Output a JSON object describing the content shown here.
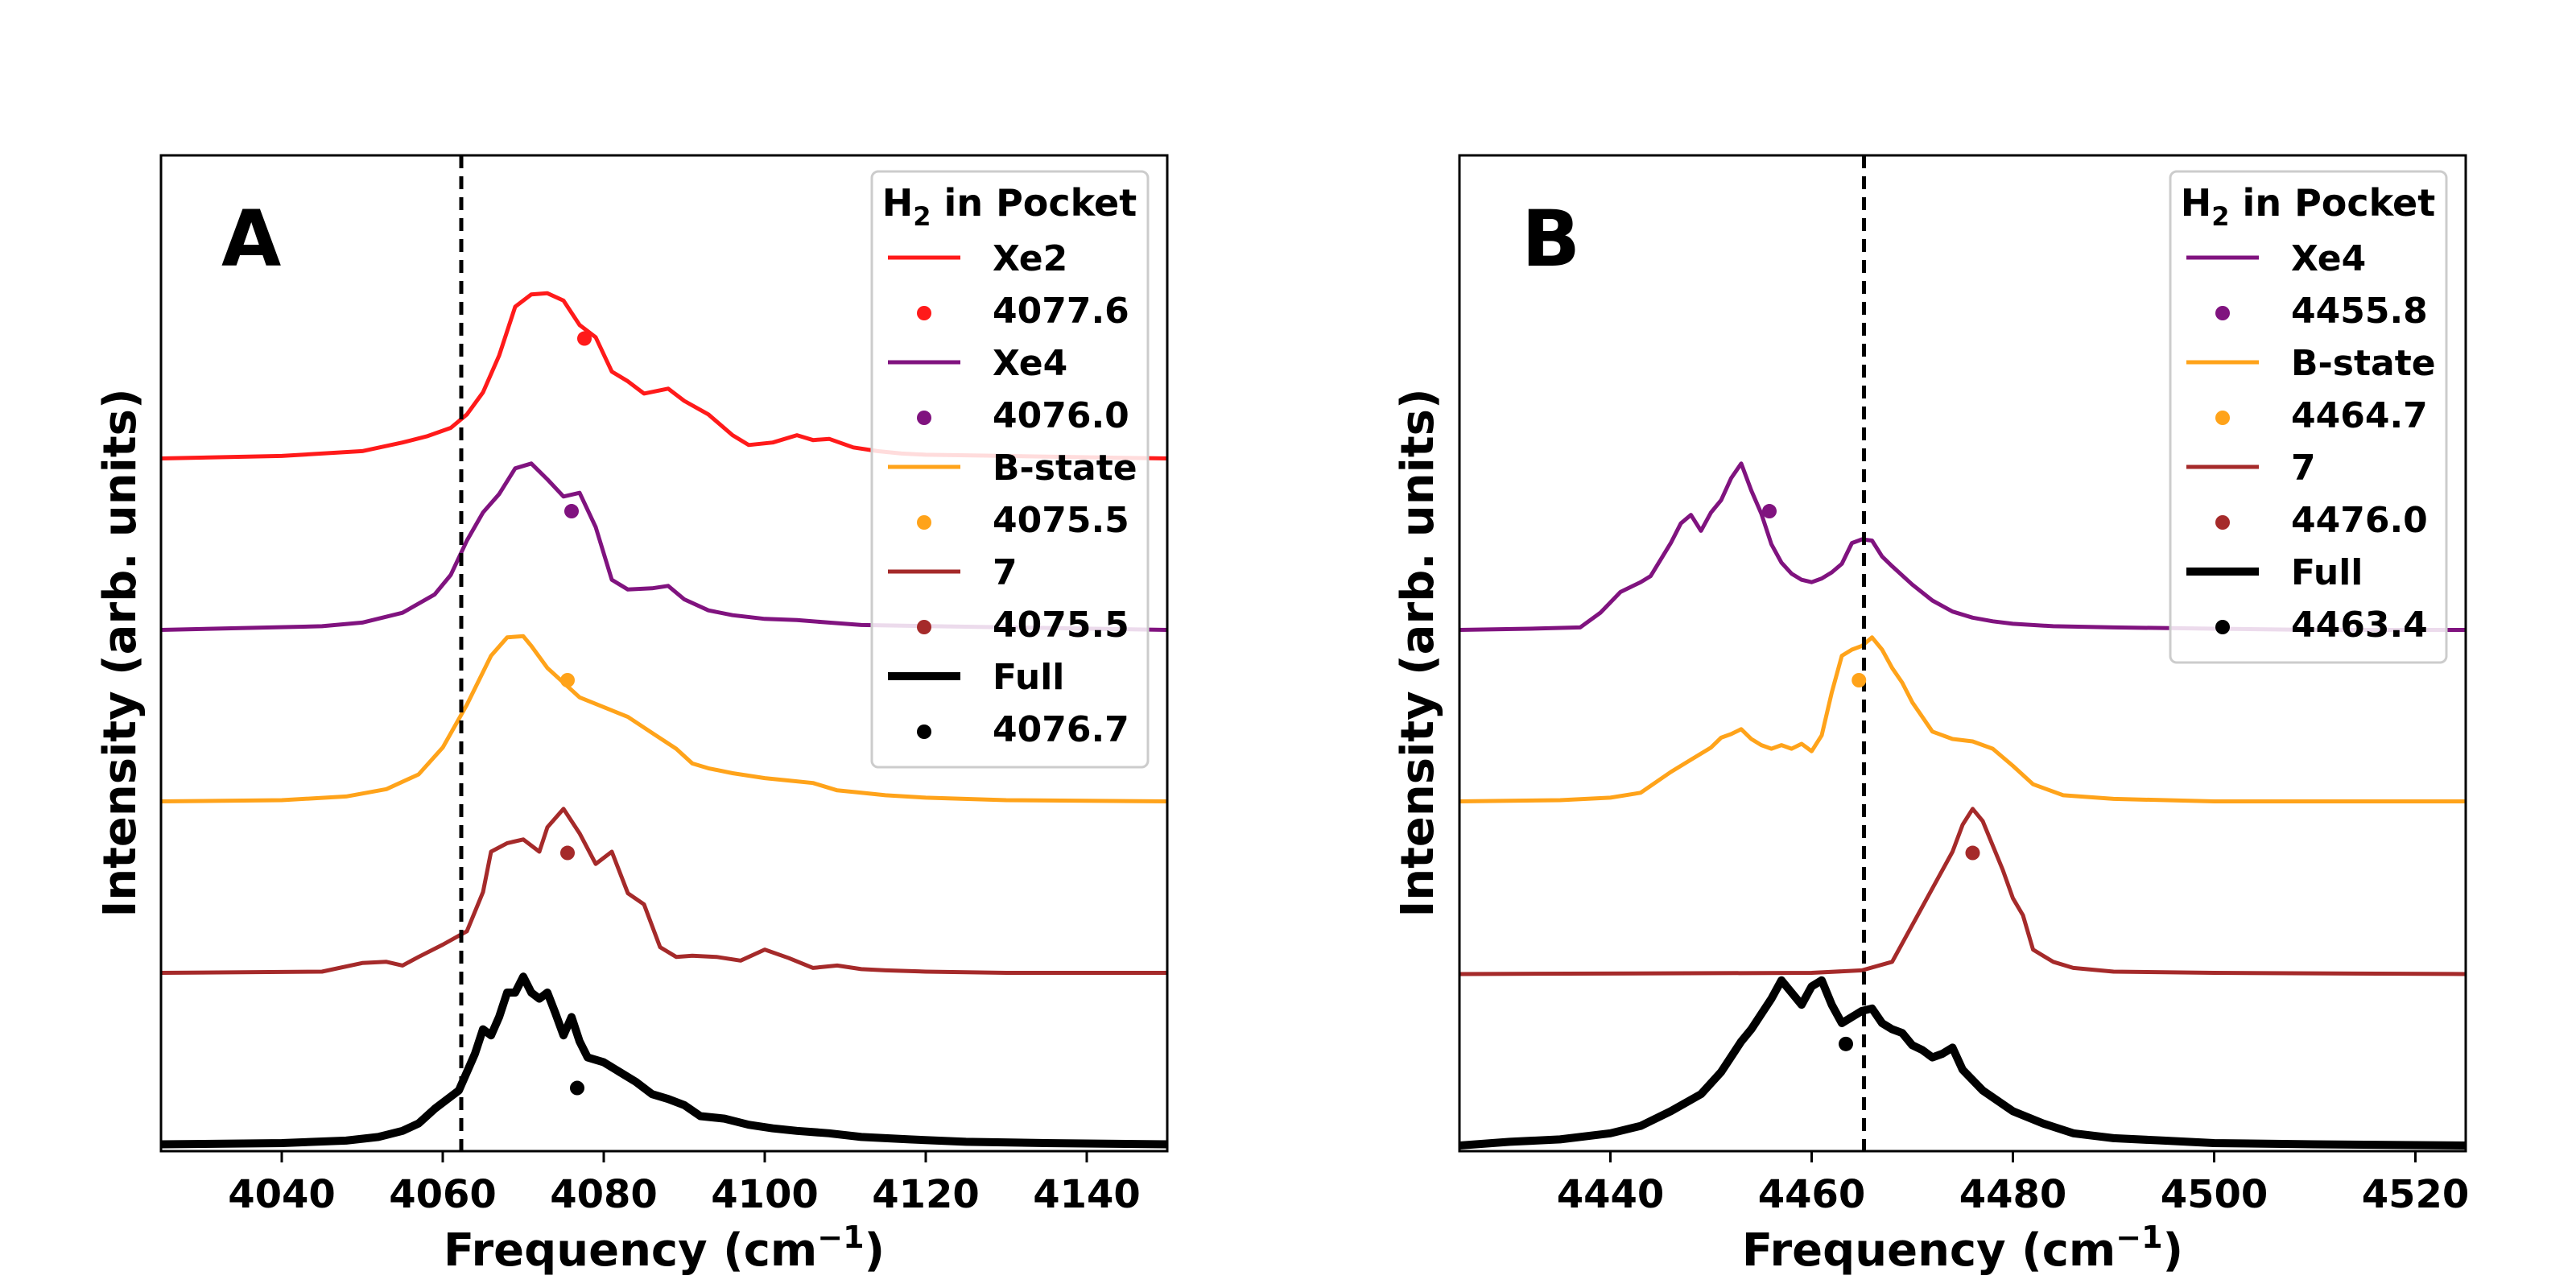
{
  "chart_data": [
    {
      "type": "line",
      "panel_label": "A",
      "xlabel": "Frequency (cm",
      "xlabel_sup": "−1",
      "xlabel_end": ")",
      "ylabel": "Intensity (arb. units)",
      "xlim": [
        4025,
        4150
      ],
      "xticks": [
        "4040",
        "4060",
        "4080",
        "4100",
        "4120",
        "4140"
      ],
      "vline_x": 4062.3,
      "legend_title": "H",
      "legend_title_sub": "2",
      "legend_title_rest": " in Pocket",
      "series": [
        {
          "name": "Xe2",
          "color": "#ff1a1a",
          "offset": 4,
          "peak_value": "4077.6",
          "peak_x": 4077.6,
          "peak_y": 0.99,
          "x": [
            4025,
            4040,
            4050,
            4055,
            4058,
            4061,
            4063,
            4065,
            4067,
            4069,
            4071,
            4073,
            4075,
            4077,
            4079,
            4081,
            4083,
            4085,
            4088,
            4090,
            4093,
            4096,
            4098,
            4101,
            4104,
            4106,
            4108,
            4111,
            4114,
            4117,
            4120,
            4130,
            4140,
            4150
          ],
          "y": [
            0.01,
            0.03,
            0.07,
            0.14,
            0.19,
            0.26,
            0.37,
            0.55,
            0.85,
            1.25,
            1.35,
            1.36,
            1.3,
            1.1,
            1.0,
            0.72,
            0.64,
            0.54,
            0.58,
            0.48,
            0.37,
            0.2,
            0.12,
            0.14,
            0.2,
            0.16,
            0.17,
            0.1,
            0.07,
            0.05,
            0.04,
            0.03,
            0.02,
            0.01
          ]
        },
        {
          "name": "Xe4",
          "color": "#80137f",
          "offset": 3,
          "peak_value": "4076.0",
          "peak_x": 4076.0,
          "peak_y": 0.98,
          "x": [
            4025,
            4045,
            4050,
            4055,
            4059,
            4061,
            4063,
            4065,
            4067,
            4069,
            4071,
            4073,
            4075,
            4077,
            4079,
            4081,
            4083,
            4086,
            4088,
            4090,
            4093,
            4096,
            4100,
            4104,
            4108,
            4112,
            4150
          ],
          "y": [
            0.01,
            0.04,
            0.07,
            0.15,
            0.3,
            0.46,
            0.74,
            0.97,
            1.12,
            1.33,
            1.37,
            1.24,
            1.1,
            1.13,
            0.85,
            0.42,
            0.34,
            0.35,
            0.37,
            0.26,
            0.17,
            0.13,
            0.1,
            0.09,
            0.07,
            0.05,
            0.01
          ]
        },
        {
          "name": "B-state",
          "color": "#ffa31a",
          "offset": 2,
          "peak_value": "4075.5",
          "peak_x": 4075.5,
          "peak_y": 1.0,
          "x": [
            4025,
            4040,
            4048,
            4053,
            4057,
            4060,
            4063,
            4066,
            4068,
            4070,
            4071,
            4073,
            4075,
            4077,
            4080,
            4083,
            4086,
            4089,
            4091,
            4093,
            4096,
            4100,
            4103,
            4106,
            4109,
            4112,
            4115,
            4120,
            4130,
            4150
          ],
          "y": [
            0.01,
            0.02,
            0.05,
            0.11,
            0.23,
            0.45,
            0.8,
            1.2,
            1.35,
            1.36,
            1.28,
            1.1,
            0.98,
            0.86,
            0.78,
            0.7,
            0.57,
            0.44,
            0.32,
            0.28,
            0.24,
            0.2,
            0.18,
            0.16,
            0.1,
            0.08,
            0.06,
            0.04,
            0.02,
            0.01
          ]
        },
        {
          "name": "7",
          "color": "#a52a2a",
          "offset": 1,
          "peak_value": "4075.5",
          "peak_x": 4075.5,
          "peak_y": 0.99,
          "x": [
            4025,
            4045,
            4050,
            4053,
            4055,
            4057,
            4060,
            4063,
            4065,
            4066,
            4068,
            4070,
            4072,
            4073,
            4075,
            4077,
            4079,
            4081,
            4083,
            4085,
            4087,
            4089,
            4091,
            4094,
            4097,
            4100,
            4103,
            4106,
            4109,
            4112,
            4115,
            4120,
            4130,
            4140,
            4150
          ],
          "y": [
            0.01,
            0.02,
            0.09,
            0.1,
            0.07,
            0.14,
            0.24,
            0.35,
            0.67,
            1.0,
            1.07,
            1.1,
            1.0,
            1.2,
            1.35,
            1.15,
            0.9,
            1.0,
            0.66,
            0.57,
            0.22,
            0.14,
            0.15,
            0.14,
            0.11,
            0.2,
            0.13,
            0.05,
            0.07,
            0.04,
            0.03,
            0.02,
            0.01,
            0.01,
            0.01
          ]
        },
        {
          "name": "Full",
          "color": "#000000",
          "offset": 0,
          "thick": true,
          "peak_value": "4076.7",
          "peak_x": 4076.7,
          "peak_y": 0.47,
          "x": [
            4025,
            4040,
            4048,
            4052,
            4055,
            4057,
            4059,
            4061,
            4062,
            4064,
            4065,
            4066,
            4067,
            4068,
            4069,
            4070,
            4071,
            4072,
            4073,
            4074,
            4075,
            4076,
            4077,
            4078,
            4080,
            4082,
            4084,
            4086,
            4088,
            4090,
            4092,
            4095,
            4098,
            4101,
            4104,
            4108,
            4112,
            4118,
            4125,
            4135,
            4150
          ],
          "y": [
            0.01,
            0.02,
            0.04,
            0.07,
            0.12,
            0.18,
            0.3,
            0.4,
            0.45,
            0.75,
            0.95,
            0.9,
            1.05,
            1.25,
            1.25,
            1.38,
            1.25,
            1.2,
            1.25,
            1.08,
            0.9,
            1.05,
            0.85,
            0.72,
            0.68,
            0.6,
            0.52,
            0.42,
            0.38,
            0.33,
            0.24,
            0.22,
            0.17,
            0.14,
            0.12,
            0.1,
            0.07,
            0.05,
            0.03,
            0.02,
            0.01
          ]
        }
      ]
    },
    {
      "type": "line",
      "panel_label": "B",
      "xlabel": "Frequency (cm",
      "xlabel_sup": "−1",
      "xlabel_end": ")",
      "ylabel": "Intensity (arb. units)",
      "xlim": [
        4425,
        4525
      ],
      "xticks": [
        "4440",
        "4460",
        "4480",
        "4500",
        "4520"
      ],
      "vline_x": 4465.2,
      "legend_title": "H",
      "legend_title_sub": "2",
      "legend_title_rest": " in Pocket",
      "series": [
        {
          "name": "Xe4",
          "color": "#80137f",
          "offset": 3,
          "peak_value": "4455.8",
          "peak_x": 4455.8,
          "peak_y": 0.98,
          "x": [
            4425,
            4432,
            4437,
            4439,
            4441,
            4443,
            4444,
            4446,
            4447,
            4448,
            4449,
            4450,
            4451,
            4452,
            4453,
            4454,
            4455,
            4456,
            4457,
            4458,
            4459,
            4460,
            4461,
            4462,
            4463,
            4464,
            4465,
            4466,
            4467,
            4468,
            4470,
            4472,
            4474,
            4476,
            4478,
            4480,
            4484,
            4490,
            4500,
            4510,
            4525
          ],
          "y": [
            0.01,
            0.02,
            0.03,
            0.15,
            0.32,
            0.4,
            0.45,
            0.72,
            0.88,
            0.95,
            0.82,
            0.97,
            1.07,
            1.25,
            1.37,
            1.15,
            0.96,
            0.71,
            0.56,
            0.47,
            0.42,
            0.4,
            0.43,
            0.48,
            0.55,
            0.72,
            0.75,
            0.74,
            0.61,
            0.53,
            0.38,
            0.25,
            0.16,
            0.11,
            0.08,
            0.06,
            0.04,
            0.03,
            0.02,
            0.01,
            0.01
          ]
        },
        {
          "name": "B-state",
          "color": "#ffa31a",
          "offset": 2,
          "peak_value": "4464.7",
          "peak_x": 4464.7,
          "peak_y": 1.0,
          "x": [
            4425,
            4435,
            4440,
            4443,
            4446,
            4448,
            4450,
            4451,
            4452,
            4453,
            4454,
            4455,
            4456,
            4457,
            4458,
            4459,
            4460,
            4461,
            4462,
            4463,
            4464,
            4465,
            4466,
            4467,
            4468,
            4469,
            4470,
            4471,
            4472,
            4474,
            4476,
            4478,
            4480,
            4482,
            4485,
            4490,
            4500,
            4525
          ],
          "y": [
            0.01,
            0.02,
            0.04,
            0.08,
            0.25,
            0.35,
            0.45,
            0.53,
            0.56,
            0.6,
            0.52,
            0.47,
            0.44,
            0.47,
            0.44,
            0.48,
            0.42,
            0.55,
            0.9,
            1.2,
            1.25,
            1.28,
            1.35,
            1.25,
            1.1,
            0.98,
            0.82,
            0.7,
            0.58,
            0.52,
            0.5,
            0.44,
            0.3,
            0.15,
            0.06,
            0.03,
            0.01,
            0.01
          ]
        },
        {
          "name": "7",
          "color": "#a52a2a",
          "offset": 1,
          "peak_value": "4476.0",
          "peak_x": 4476.0,
          "peak_y": 0.99,
          "x": [
            4425,
            4460,
            4465,
            4468,
            4470,
            4472,
            4474,
            4475,
            4476,
            4477,
            4478,
            4479,
            4480,
            4481,
            4482,
            4484,
            4486,
            4490,
            4500,
            4525
          ],
          "y": [
            0.0,
            0.01,
            0.03,
            0.1,
            0.4,
            0.7,
            1.0,
            1.22,
            1.35,
            1.25,
            1.05,
            0.85,
            0.62,
            0.48,
            0.2,
            0.1,
            0.05,
            0.02,
            0.01,
            0.0
          ]
        },
        {
          "name": "Full",
          "color": "#000000",
          "offset": 0,
          "thick": true,
          "peak_value": "4463.4",
          "peak_x": 4463.4,
          "peak_y": 0.83,
          "x": [
            4425,
            4430,
            4435,
            4440,
            4443,
            4446,
            4449,
            4451,
            4453,
            4454,
            4456,
            4457,
            4458,
            4459,
            4460,
            4461,
            4462,
            4463,
            4464,
            4465,
            4466,
            4467,
            4468,
            4469,
            4470,
            4471,
            4472,
            4473,
            4474,
            4475,
            4477,
            4480,
            4483,
            4486,
            4490,
            4495,
            4500,
            4510,
            4525
          ],
          "y": [
            0.0,
            0.03,
            0.05,
            0.1,
            0.16,
            0.28,
            0.42,
            0.6,
            0.85,
            0.95,
            1.2,
            1.35,
            1.25,
            1.15,
            1.3,
            1.35,
            1.15,
            1.0,
            1.05,
            1.1,
            1.12,
            1.0,
            0.95,
            0.92,
            0.82,
            0.78,
            0.72,
            0.75,
            0.8,
            0.62,
            0.45,
            0.28,
            0.18,
            0.1,
            0.06,
            0.04,
            0.02,
            0.01,
            0.0
          ]
        }
      ]
    }
  ]
}
